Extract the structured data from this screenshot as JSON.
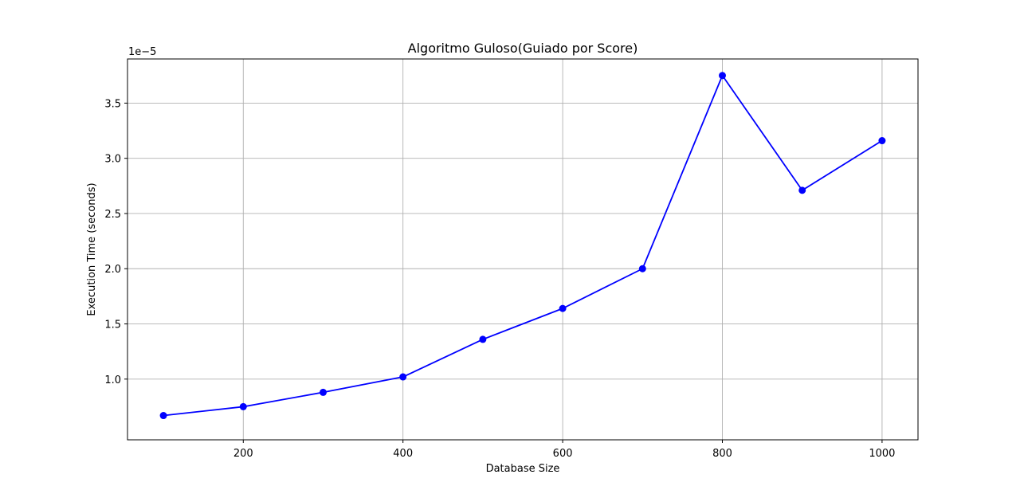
{
  "chart_data": {
    "type": "line",
    "title": "Algoritmo Guloso(Guiado por Score)",
    "xlabel": "Database Size",
    "ylabel": "Execution Time (seconds)",
    "y_offset_label": "1e−5",
    "x": [
      100,
      200,
      300,
      400,
      500,
      600,
      700,
      800,
      900,
      1000
    ],
    "series": [
      {
        "values": [
          0.67,
          0.75,
          0.88,
          1.02,
          1.36,
          1.64,
          2.0,
          3.75,
          2.71,
          3.16
        ],
        "color": "#0000ff",
        "marker": "circle"
      }
    ],
    "xlim": [
      55,
      1045
    ],
    "ylim": [
      0.45,
      3.9
    ],
    "x_ticks": [
      200,
      400,
      600,
      800,
      1000
    ],
    "x_tick_labels": [
      "200",
      "400",
      "600",
      "800",
      "1000"
    ],
    "y_ticks": [
      1.0,
      1.5,
      2.0,
      2.5,
      3.0,
      3.5
    ],
    "y_tick_labels": [
      "1.0",
      "1.5",
      "2.0",
      "2.5",
      "3.0",
      "3.5"
    ],
    "grid": true,
    "grid_color": "#b0b0b0",
    "legend": "none"
  }
}
